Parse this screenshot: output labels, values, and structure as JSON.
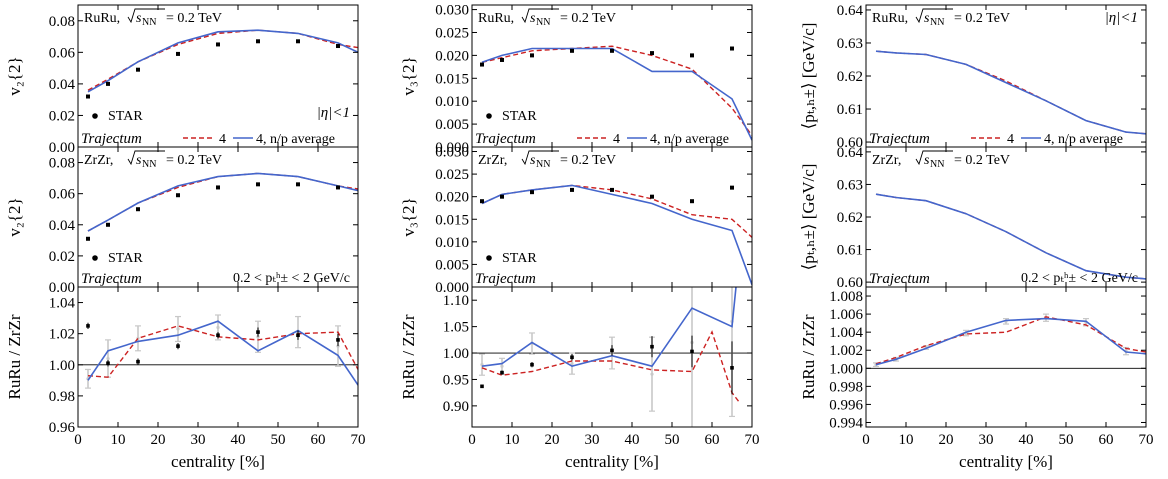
{
  "colors": {
    "dashed": "#cc2222",
    "solid": "#4466cc",
    "star": "#000000",
    "ratio_light": "#c8c8c8"
  },
  "chart_data": [
    {
      "type": "line",
      "id": "v2-ruru",
      "ylabel": "v₂{2}",
      "ylim": [
        0,
        0.09
      ],
      "yticks": [
        "0.00",
        "0.02",
        "0.04",
        "0.06",
        "0.08"
      ],
      "ytick_values": [
        0,
        0.02,
        0.04,
        0.06,
        0.08
      ],
      "xlim": [
        0,
        70
      ],
      "show_xticklabels": false,
      "annotations": {
        "system": "RuRu,",
        "energy": "= 0.2 TeV",
        "right": "|η|<1",
        "model": "Trajectum"
      },
      "legend": {
        "dashed": "4",
        "solid": "4, n/p average",
        "points": "STAR"
      },
      "series": [
        {
          "name": "4",
          "style": "dashed",
          "x": [
            2.5,
            7.5,
            15,
            25,
            35,
            45,
            55,
            65,
            70
          ],
          "y": [
            0.036,
            0.043,
            0.054,
            0.065,
            0.072,
            0.074,
            0.072,
            0.065,
            0.063
          ]
        },
        {
          "name": "4, n/p average",
          "style": "solid",
          "x": [
            2.5,
            7.5,
            15,
            25,
            35,
            45,
            55,
            65,
            70
          ],
          "y": [
            0.035,
            0.042,
            0.054,
            0.066,
            0.073,
            0.074,
            0.072,
            0.066,
            0.06
          ]
        }
      ],
      "points": {
        "name": "STAR",
        "x": [
          2.5,
          7.5,
          15,
          25,
          35,
          45,
          55,
          65
        ],
        "y": [
          0.032,
          0.04,
          0.049,
          0.059,
          0.065,
          0.067,
          0.067,
          0.064
        ]
      }
    },
    {
      "type": "line",
      "id": "v3-ruru",
      "ylabel": "v₃{2}",
      "ylim": [
        0,
        0.031
      ],
      "yticks": [
        "0.000",
        "0.005",
        "0.010",
        "0.015",
        "0.020",
        "0.025",
        "0.030"
      ],
      "ytick_values": [
        0,
        0.005,
        0.01,
        0.015,
        0.02,
        0.025,
        0.03
      ],
      "xlim": [
        0,
        70
      ],
      "show_xticklabels": false,
      "annotations": {
        "system": "RuRu,",
        "energy": "= 0.2 TeV",
        "model": "Trajectum"
      },
      "legend": {
        "dashed": "4",
        "solid": "4, n/p average",
        "points": "STAR"
      },
      "series": [
        {
          "name": "4",
          "style": "dashed",
          "x": [
            2.5,
            7.5,
            15,
            25,
            35,
            45,
            55,
            65,
            70
          ],
          "y": [
            0.0185,
            0.0195,
            0.021,
            0.0215,
            0.022,
            0.02,
            0.017,
            0.0085,
            0.0025
          ]
        },
        {
          "name": "4, n/p average",
          "style": "solid",
          "x": [
            2.5,
            7.5,
            15,
            25,
            35,
            45,
            55,
            65,
            70
          ],
          "y": [
            0.0185,
            0.02,
            0.0215,
            0.0215,
            0.0215,
            0.0165,
            0.0165,
            0.0105,
            0.0015
          ]
        }
      ],
      "points": {
        "name": "STAR",
        "x": [
          2.5,
          7.5,
          15,
          25,
          35,
          45,
          55,
          65
        ],
        "y": [
          0.018,
          0.019,
          0.02,
          0.021,
          0.021,
          0.0205,
          0.02,
          0.0215
        ]
      }
    },
    {
      "type": "line",
      "id": "pt-ruru",
      "ylabel": "⟨pₜ,ₕ±⟩ [GeV/c]",
      "ylim": [
        0.5985,
        0.6415
      ],
      "yticks": [
        "0.60",
        "0.61",
        "0.62",
        "0.63",
        "0.64"
      ],
      "ytick_values": [
        0.6,
        0.61,
        0.62,
        0.63,
        0.64
      ],
      "xlim": [
        0,
        70
      ],
      "show_xticklabels": false,
      "annotations": {
        "system": "RuRu,",
        "energy": "= 0.2 TeV",
        "right": "|η|<1",
        "model": "Trajectum"
      },
      "legend": {
        "dashed": "4",
        "solid": "4, n/p average"
      },
      "series": [
        {
          "name": "4",
          "style": "dashed",
          "x": [
            2.5,
            7.5,
            15,
            25,
            35,
            45,
            55,
            65,
            70
          ],
          "y": [
            0.6275,
            0.627,
            0.6265,
            0.6235,
            0.6185,
            0.6125,
            0.6065,
            0.603,
            0.6025
          ]
        },
        {
          "name": "4, n/p average",
          "style": "solid",
          "x": [
            2.5,
            7.5,
            15,
            25,
            35,
            45,
            55,
            65,
            70
          ],
          "y": [
            0.6275,
            0.627,
            0.6265,
            0.6235,
            0.618,
            0.6125,
            0.6065,
            0.603,
            0.6025
          ]
        }
      ]
    },
    {
      "type": "line",
      "id": "v2-zrzr",
      "ylabel": "v₂{2}",
      "ylim": [
        0,
        0.09
      ],
      "yticks": [
        "0.00",
        "0.02",
        "0.04",
        "0.06",
        "0.08"
      ],
      "ytick_values": [
        0,
        0.02,
        0.04,
        0.06,
        0.08
      ],
      "xlim": [
        0,
        70
      ],
      "show_xticklabels": false,
      "annotations": {
        "system": "ZrZr,",
        "energy": "= 0.2 TeV",
        "cut": "0.2 < pₜʰ± < 2 GeV/c",
        "model": "Trajectum"
      },
      "legend": {
        "points": "STAR"
      },
      "series": [
        {
          "name": "4",
          "style": "dashed",
          "x": [
            2.5,
            7.5,
            15,
            25,
            35,
            45,
            55,
            65,
            70
          ],
          "y": [
            0.036,
            0.043,
            0.054,
            0.064,
            0.071,
            0.073,
            0.071,
            0.065,
            0.063
          ]
        },
        {
          "name": "4, n/p average",
          "style": "solid",
          "x": [
            2.5,
            7.5,
            15,
            25,
            35,
            45,
            55,
            65,
            70
          ],
          "y": [
            0.036,
            0.043,
            0.054,
            0.065,
            0.071,
            0.073,
            0.071,
            0.065,
            0.062
          ]
        }
      ],
      "points": {
        "name": "STAR",
        "x": [
          2.5,
          7.5,
          15,
          25,
          35,
          45,
          55,
          65
        ],
        "y": [
          0.031,
          0.04,
          0.05,
          0.059,
          0.064,
          0.066,
          0.066,
          0.064
        ]
      }
    },
    {
      "type": "line",
      "id": "v3-zrzr",
      "ylabel": "v₃{2}",
      "ylim": [
        0,
        0.031
      ],
      "yticks": [
        "0.000",
        "0.005",
        "0.010",
        "0.015",
        "0.020",
        "0.025",
        "0.030"
      ],
      "ytick_values": [
        0,
        0.005,
        0.01,
        0.015,
        0.02,
        0.025,
        0.03
      ],
      "xlim": [
        0,
        70
      ],
      "show_xticklabels": false,
      "annotations": {
        "system": "ZrZr,",
        "energy": "= 0.2 TeV",
        "model": "Trajectum"
      },
      "legend": {
        "points": "STAR"
      },
      "series": [
        {
          "name": "4",
          "style": "dashed",
          "x": [
            2.5,
            7.5,
            15,
            25,
            35,
            45,
            55,
            65,
            70
          ],
          "y": [
            0.0185,
            0.0205,
            0.0215,
            0.0225,
            0.0215,
            0.0195,
            0.016,
            0.015,
            0.011
          ]
        },
        {
          "name": "4, n/p average",
          "style": "solid",
          "x": [
            2.5,
            7.5,
            15,
            25,
            35,
            45,
            55,
            65,
            70
          ],
          "y": [
            0.0185,
            0.0205,
            0.0215,
            0.0225,
            0.0205,
            0.0185,
            0.015,
            0.0125,
            0.0005
          ]
        }
      ],
      "points": {
        "name": "STAR",
        "x": [
          2.5,
          7.5,
          15,
          25,
          35,
          45,
          55,
          65
        ],
        "y": [
          0.019,
          0.02,
          0.021,
          0.0215,
          0.0215,
          0.02,
          0.019,
          0.022
        ]
      }
    },
    {
      "type": "line",
      "id": "pt-zrzr",
      "ylabel": "⟨pₜ,ₕ±⟩ [GeV/c]",
      "ylim": [
        0.5985,
        0.6415
      ],
      "yticks": [
        "0.60",
        "0.61",
        "0.62",
        "0.63",
        "0.64"
      ],
      "ytick_values": [
        0.6,
        0.61,
        0.62,
        0.63,
        0.64
      ],
      "xlim": [
        0,
        70
      ],
      "show_xticklabels": false,
      "annotations": {
        "system": "ZrZr,",
        "energy": "= 0.2 TeV",
        "cut": "0.2 < pₜʰ± < 2 GeV/c",
        "model": "Trajectum"
      },
      "series": [
        {
          "name": "4",
          "style": "dashed",
          "x": [
            2.5,
            7.5,
            15,
            25,
            35,
            45,
            55,
            65,
            70
          ],
          "y": [
            0.627,
            0.626,
            0.625,
            0.621,
            0.6155,
            0.609,
            0.6035,
            0.6015,
            0.601
          ]
        },
        {
          "name": "4, n/p average",
          "style": "solid",
          "x": [
            2.5,
            7.5,
            15,
            25,
            35,
            45,
            55,
            65,
            70
          ],
          "y": [
            0.627,
            0.626,
            0.625,
            0.621,
            0.6155,
            0.609,
            0.6035,
            0.6015,
            0.601
          ]
        }
      ]
    },
    {
      "type": "line",
      "id": "ratio-v2",
      "ylabel": "RuRu / ZrZr",
      "xlabel": "centrality [%]",
      "ylim": [
        0.96,
        1.05
      ],
      "yticks": [
        "0.96",
        "0.98",
        "1.00",
        "1.02",
        "1.04"
      ],
      "ytick_values": [
        0.96,
        0.98,
        1.0,
        1.02,
        1.04
      ],
      "xlim": [
        0,
        70
      ],
      "show_xticklabels": true,
      "xticks": [
        "0",
        "10",
        "20",
        "30",
        "40",
        "50",
        "60",
        "70"
      ],
      "xtick_values": [
        0,
        10,
        20,
        30,
        40,
        50,
        60,
        70
      ],
      "reference": 1.0,
      "series": [
        {
          "name": "4",
          "style": "dashed",
          "x": [
            2.5,
            7.5,
            15,
            25,
            35,
            45,
            55,
            65,
            70
          ],
          "y": [
            0.993,
            0.992,
            1.017,
            1.025,
            1.018,
            1.016,
            1.02,
            1.021,
            0.997
          ]
        },
        {
          "name": "4, n/p average",
          "style": "solid",
          "x": [
            2.5,
            7.5,
            15,
            25,
            35,
            45,
            55,
            65,
            70
          ],
          "y": [
            0.99,
            1.009,
            1.015,
            1.019,
            1.028,
            1.009,
            1.022,
            1.006,
            0.987
          ]
        }
      ],
      "errors": {
        "x": [
          2.5,
          7.5,
          15,
          25,
          35,
          45,
          55,
          65
        ],
        "y": [
          0.991,
          1.004,
          1.017,
          1.023,
          1.024,
          1.018,
          1.021,
          1.012
        ],
        "err": [
          0.006,
          0.012,
          0.008,
          0.008,
          0.008,
          0.01,
          0.01,
          0.013
        ]
      },
      "points": {
        "x": [
          2.5,
          7.5,
          15,
          25,
          35,
          45,
          55,
          65
        ],
        "y": [
          1.025,
          1.001,
          1.002,
          1.012,
          1.019,
          1.021,
          1.019,
          1.016
        ],
        "err": [
          0.002,
          0.002,
          0.002,
          0.002,
          0.002,
          0.003,
          0.003,
          0.004
        ]
      }
    },
    {
      "type": "line",
      "id": "ratio-v3",
      "ylabel": "RuRu / ZrZr",
      "xlabel": "centrality [%]",
      "ylim": [
        0.86,
        1.125
      ],
      "yticks": [
        "0.90",
        "0.95",
        "1.00",
        "1.05",
        "1.10"
      ],
      "ytick_values": [
        0.9,
        0.95,
        1.0,
        1.05,
        1.1
      ],
      "xlim": [
        0,
        70
      ],
      "show_xticklabels": true,
      "xticks": [
        "0",
        "10",
        "20",
        "30",
        "40",
        "50",
        "60",
        "70"
      ],
      "xtick_values": [
        0,
        10,
        20,
        30,
        40,
        50,
        60,
        70
      ],
      "reference": 1.0,
      "series": [
        {
          "name": "4",
          "style": "dashed",
          "x": [
            2.5,
            7.5,
            15,
            25,
            35,
            45,
            55,
            60,
            65,
            67
          ],
          "y": [
            0.972,
            0.958,
            0.965,
            0.985,
            0.985,
            0.968,
            0.965,
            1.04,
            0.925,
            0.905
          ]
        },
        {
          "name": "4, n/p average",
          "style": "solid",
          "x": [
            2.5,
            7.5,
            15,
            25,
            35,
            45,
            55,
            65,
            66
          ],
          "y": [
            0.975,
            0.98,
            1.02,
            0.975,
            0.995,
            0.975,
            1.085,
            1.05,
            1.125
          ]
        }
      ],
      "errors": {
        "x": [
          2.5,
          7.5,
          15,
          25,
          35,
          45,
          55,
          65
        ],
        "y": [
          0.978,
          0.975,
          1.018,
          0.98,
          1.0,
          0.96,
          1.02,
          1.06
        ],
        "err": [
          0.02,
          0.015,
          0.02,
          0.02,
          0.03,
          0.07,
          0.19,
          0.18
        ]
      },
      "points": {
        "x": [
          2.5,
          7.5,
          15,
          25,
          35,
          45,
          55,
          65
        ],
        "y": [
          0.937,
          0.963,
          0.978,
          0.992,
          1.005,
          1.012,
          1.003,
          0.972
        ],
        "err": [
          0.003,
          0.004,
          0.005,
          0.006,
          0.01,
          0.02,
          0.03,
          0.05
        ]
      }
    },
    {
      "type": "line",
      "id": "ratio-pt",
      "ylabel": "RuRu / ZrZr",
      "xlabel": "centrality [%]",
      "ylim": [
        0.9935,
        1.009
      ],
      "yticks": [
        "0.994",
        "0.996",
        "0.998",
        "1.000",
        "1.002",
        "1.004",
        "1.006",
        "1.008"
      ],
      "ytick_values": [
        0.994,
        0.996,
        0.998,
        1.0,
        1.002,
        1.004,
        1.006,
        1.008
      ],
      "xlim": [
        0,
        70
      ],
      "show_xticklabels": true,
      "xticks": [
        "0",
        "10",
        "20",
        "30",
        "40",
        "50",
        "60",
        "70"
      ],
      "xtick_values": [
        0,
        10,
        20,
        30,
        40,
        50,
        60,
        70
      ],
      "reference": 1.0,
      "series": [
        {
          "name": "4",
          "style": "dashed",
          "x": [
            2.5,
            7.5,
            15,
            25,
            35,
            45,
            55,
            65,
            70
          ],
          "y": [
            1.0005,
            1.0012,
            1.0025,
            1.0038,
            1.004,
            1.0057,
            1.0048,
            1.0022,
            1.0018
          ]
        },
        {
          "name": "4, n/p average",
          "style": "solid",
          "x": [
            2.5,
            7.5,
            15,
            25,
            35,
            45,
            55,
            65,
            70
          ],
          "y": [
            1.0004,
            1.001,
            1.0022,
            1.004,
            1.0053,
            1.0055,
            1.0052,
            1.0018,
            1.0016
          ]
        }
      ],
      "errors": {
        "x": [
          2.5,
          7.5,
          15,
          25,
          35,
          45,
          55,
          65
        ],
        "y": [
          1.0004,
          1.001,
          1.0023,
          1.0039,
          1.0052,
          1.0056,
          1.0051,
          1.0019
        ],
        "err": [
          0.0002,
          0.0002,
          0.0002,
          0.0003,
          0.0003,
          0.0004,
          0.0004,
          0.0004
        ]
      }
    }
  ]
}
